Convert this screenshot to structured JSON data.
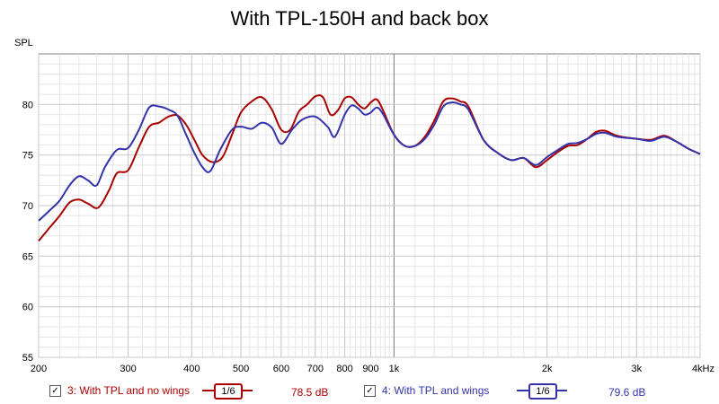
{
  "chart_data": {
    "type": "line",
    "title": "With TPL-150H and back box",
    "ylabel": "SPL",
    "xlabel": "",
    "xscale": "log",
    "xlim": [
      200,
      4000
    ],
    "ylim": [
      55,
      85
    ],
    "grid": true,
    "x_ticks": [
      200,
      300,
      400,
      500,
      600,
      700,
      800,
      900,
      1000,
      2000,
      3000,
      4000
    ],
    "x_tick_labels": [
      "200",
      "300",
      "400",
      "500",
      "600",
      "700",
      "800",
      "900",
      "1k",
      "2k",
      "3k",
      "4kHz"
    ],
    "y_ticks": [
      55,
      60,
      65,
      70,
      75,
      80
    ],
    "legend_position": "bottom",
    "series": [
      {
        "name": "3: With TPL and no wings",
        "color": "#aa0000",
        "smoothing": "1/6",
        "level": "78.5 dB",
        "points": [
          [
            200,
            66.5
          ],
          [
            210,
            67.8
          ],
          [
            220,
            69.0
          ],
          [
            230,
            70.3
          ],
          [
            240,
            70.6
          ],
          [
            250,
            70.2
          ],
          [
            262,
            69.8
          ],
          [
            275,
            71.5
          ],
          [
            285,
            73.2
          ],
          [
            300,
            73.5
          ],
          [
            315,
            75.8
          ],
          [
            330,
            77.8
          ],
          [
            345,
            78.2
          ],
          [
            360,
            78.8
          ],
          [
            375,
            78.9
          ],
          [
            390,
            78.0
          ],
          [
            405,
            76.5
          ],
          [
            420,
            75.0
          ],
          [
            440,
            74.3
          ],
          [
            460,
            74.8
          ],
          [
            480,
            77.0
          ],
          [
            500,
            79.2
          ],
          [
            525,
            80.3
          ],
          [
            550,
            80.7
          ],
          [
            575,
            79.5
          ],
          [
            600,
            77.5
          ],
          [
            625,
            77.5
          ],
          [
            650,
            79.3
          ],
          [
            675,
            80.0
          ],
          [
            700,
            80.8
          ],
          [
            725,
            80.7
          ],
          [
            750,
            79.0
          ],
          [
            775,
            79.4
          ],
          [
            800,
            80.6
          ],
          [
            825,
            80.7
          ],
          [
            850,
            80.0
          ],
          [
            875,
            79.6
          ],
          [
            900,
            80.2
          ],
          [
            925,
            80.5
          ],
          [
            950,
            79.5
          ],
          [
            1000,
            77.0
          ],
          [
            1050,
            75.9
          ],
          [
            1100,
            75.9
          ],
          [
            1150,
            76.8
          ],
          [
            1200,
            78.4
          ],
          [
            1250,
            80.3
          ],
          [
            1300,
            80.6
          ],
          [
            1350,
            80.3
          ],
          [
            1400,
            79.8
          ],
          [
            1500,
            76.5
          ],
          [
            1600,
            75.2
          ],
          [
            1700,
            74.5
          ],
          [
            1800,
            74.7
          ],
          [
            1900,
            73.8
          ],
          [
            2000,
            74.5
          ],
          [
            2100,
            75.3
          ],
          [
            2200,
            75.9
          ],
          [
            2300,
            76.0
          ],
          [
            2400,
            76.6
          ],
          [
            2500,
            77.3
          ],
          [
            2600,
            77.4
          ],
          [
            2750,
            76.9
          ],
          [
            3000,
            76.6
          ],
          [
            3200,
            76.5
          ],
          [
            3400,
            76.9
          ],
          [
            3600,
            76.3
          ],
          [
            3800,
            75.6
          ],
          [
            4000,
            75.1
          ]
        ]
      },
      {
        "name": "4: With TPL and wings",
        "color": "#3333aa",
        "smoothing": "1/6",
        "level": "79.6 dB",
        "points": [
          [
            200,
            68.5
          ],
          [
            210,
            69.5
          ],
          [
            220,
            70.5
          ],
          [
            230,
            72.0
          ],
          [
            240,
            72.9
          ],
          [
            250,
            72.5
          ],
          [
            260,
            72.0
          ],
          [
            270,
            73.8
          ],
          [
            285,
            75.5
          ],
          [
            300,
            75.7
          ],
          [
            315,
            77.5
          ],
          [
            330,
            79.7
          ],
          [
            345,
            79.8
          ],
          [
            360,
            79.5
          ],
          [
            375,
            78.9
          ],
          [
            390,
            77.0
          ],
          [
            405,
            75.2
          ],
          [
            420,
            73.8
          ],
          [
            435,
            73.4
          ],
          [
            455,
            75.5
          ],
          [
            480,
            77.5
          ],
          [
            500,
            77.8
          ],
          [
            525,
            77.6
          ],
          [
            550,
            78.2
          ],
          [
            575,
            77.7
          ],
          [
            600,
            76.1
          ],
          [
            630,
            77.5
          ],
          [
            660,
            78.5
          ],
          [
            700,
            78.8
          ],
          [
            740,
            77.8
          ],
          [
            765,
            76.8
          ],
          [
            800,
            79.0
          ],
          [
            825,
            79.9
          ],
          [
            850,
            79.6
          ],
          [
            875,
            79.0
          ],
          [
            900,
            79.2
          ],
          [
            925,
            79.7
          ],
          [
            950,
            79.1
          ],
          [
            1000,
            77.0
          ],
          [
            1050,
            75.9
          ],
          [
            1100,
            75.9
          ],
          [
            1150,
            76.6
          ],
          [
            1200,
            78.0
          ],
          [
            1250,
            79.8
          ],
          [
            1300,
            80.2
          ],
          [
            1350,
            80.0
          ],
          [
            1400,
            79.5
          ],
          [
            1500,
            76.5
          ],
          [
            1600,
            75.2
          ],
          [
            1700,
            74.5
          ],
          [
            1800,
            74.7
          ],
          [
            1900,
            74.0
          ],
          [
            2000,
            74.8
          ],
          [
            2100,
            75.5
          ],
          [
            2200,
            76.1
          ],
          [
            2300,
            76.2
          ],
          [
            2400,
            76.6
          ],
          [
            2500,
            77.1
          ],
          [
            2600,
            77.2
          ],
          [
            2750,
            76.8
          ],
          [
            3000,
            76.6
          ],
          [
            3200,
            76.4
          ],
          [
            3400,
            76.8
          ],
          [
            3600,
            76.3
          ],
          [
            3800,
            75.6
          ],
          [
            4000,
            75.1
          ]
        ]
      }
    ]
  }
}
